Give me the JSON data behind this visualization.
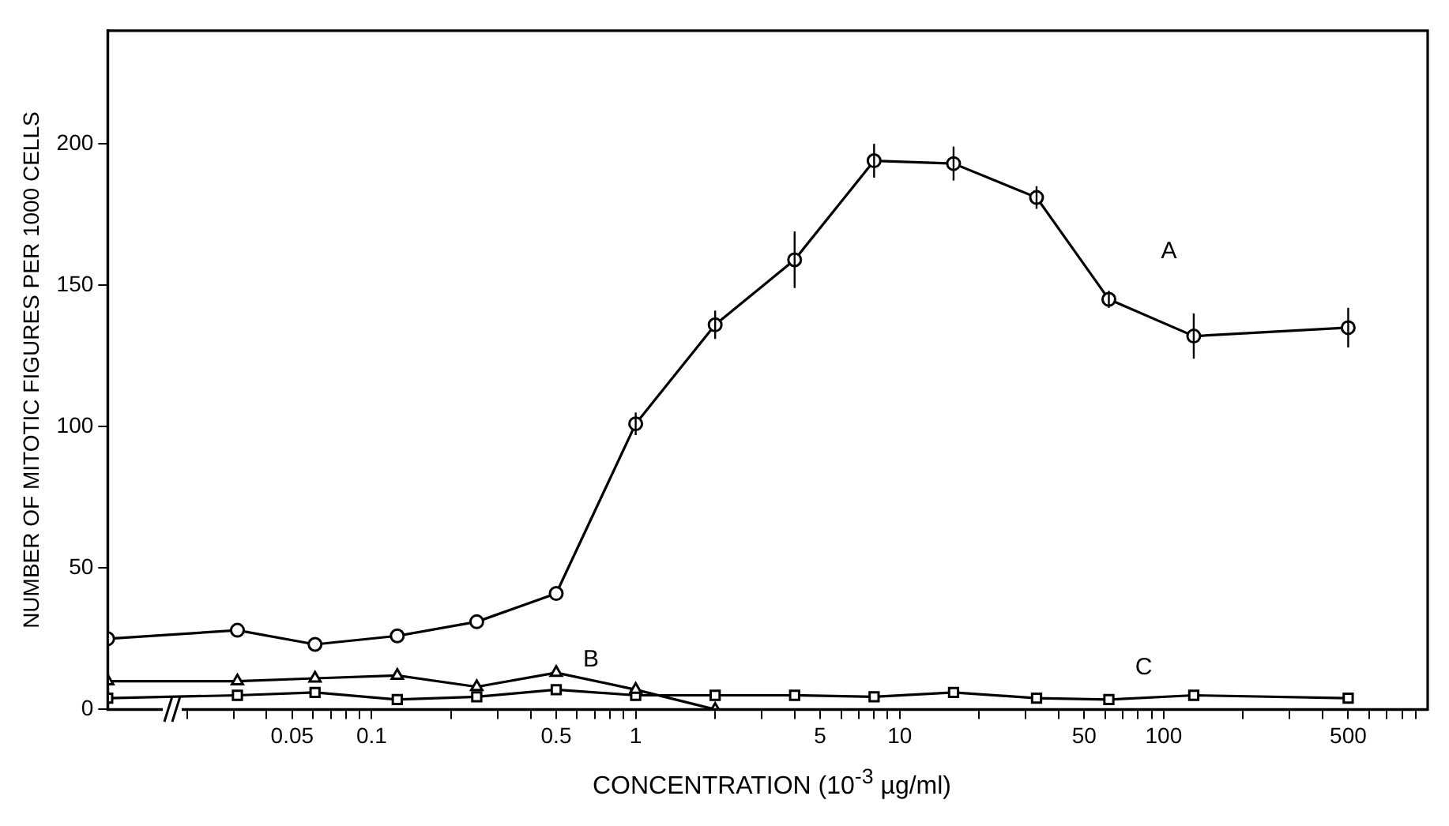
{
  "chart_data": {
    "type": "line",
    "xlabel": "CONCENTRATION (10$^{-3}$ µg/ml)",
    "ylabel": "NUMBER OF MITOTIC FIGURES PER 1000 CELLS",
    "log": "x",
    "xlim": [
      0.01,
      1000
    ],
    "ylim": [
      0,
      240
    ],
    "xticks": [
      {
        "value": 0.02,
        "label": null
      },
      {
        "value": 0.03,
        "label": null
      },
      {
        "value": 0.04,
        "label": null
      },
      0.05,
      {
        "value": 0.06,
        "label": null
      },
      {
        "value": 0.07,
        "label": null
      },
      {
        "value": 0.08,
        "label": null
      },
      {
        "value": 0.09,
        "label": null
      },
      0.1,
      {
        "value": 0.2,
        "label": null
      },
      {
        "value": 0.3,
        "label": null
      },
      {
        "value": 0.4,
        "label": null
      },
      0.5,
      {
        "value": 0.6,
        "label": null
      },
      {
        "value": 0.7,
        "label": null
      },
      {
        "value": 0.8,
        "label": null
      },
      {
        "value": 0.9,
        "label": null
      },
      1,
      {
        "value": 2,
        "label": null
      },
      {
        "value": 3,
        "label": null
      },
      {
        "value": 4,
        "label": null
      },
      5,
      {
        "value": 6,
        "label": null
      },
      {
        "value": 7,
        "label": null
      },
      {
        "value": 8,
        "label": null
      },
      {
        "value": 9,
        "label": null
      },
      10,
      {
        "value": 20,
        "label": null
      },
      {
        "value": 30,
        "label": null
      },
      {
        "value": 40,
        "label": null
      },
      50,
      {
        "value": 60,
        "label": null
      },
      {
        "value": 70,
        "label": null
      },
      {
        "value": 80,
        "label": null
      },
      {
        "value": 90,
        "label": null
      },
      100,
      {
        "value": 200,
        "label": null
      },
      {
        "value": 300,
        "label": null
      },
      {
        "value": 400,
        "label": null
      },
      500,
      {
        "value": 600,
        "label": null
      },
      {
        "value": 700,
        "label": null
      },
      {
        "value": 800,
        "label": null
      },
      {
        "value": 900,
        "label": null
      }
    ],
    "yticks": [
      0,
      50,
      100,
      150,
      200
    ],
    "grid": false,
    "legend": false,
    "line_style": "solid",
    "series": [
      {
        "name": "A",
        "color": "#000000",
        "marker": "circle",
        "x": [
          0.01,
          0.031,
          0.061,
          0.125,
          0.25,
          0.5,
          1,
          2,
          4,
          8,
          16,
          33,
          62,
          130,
          500
        ],
        "values": [
          25,
          28,
          23,
          26,
          31,
          41,
          101,
          136,
          159,
          194,
          193,
          181,
          145,
          132,
          135
        ],
        "errors": [
          null,
          null,
          null,
          null,
          null,
          null,
          4,
          5,
          10,
          6,
          6,
          4,
          3,
          8,
          7
        ]
      },
      {
        "name": "B",
        "color": "#000000",
        "marker": "triangle",
        "x": [
          0.01,
          0.031,
          0.061,
          0.125,
          0.25,
          0.5,
          1,
          2
        ],
        "values": [
          10,
          10,
          11,
          12,
          8,
          13,
          7,
          0
        ]
      },
      {
        "name": "C",
        "color": "#000000",
        "marker": "square",
        "x": [
          0.01,
          0.031,
          0.061,
          0.125,
          0.25,
          0.5,
          1,
          2,
          4,
          8,
          16,
          33,
          62,
          130,
          500
        ],
        "values": [
          4,
          5,
          6,
          3.5,
          4.5,
          7,
          5,
          5,
          5,
          4.5,
          6,
          4,
          3.5,
          5,
          4
        ]
      }
    ]
  }
}
